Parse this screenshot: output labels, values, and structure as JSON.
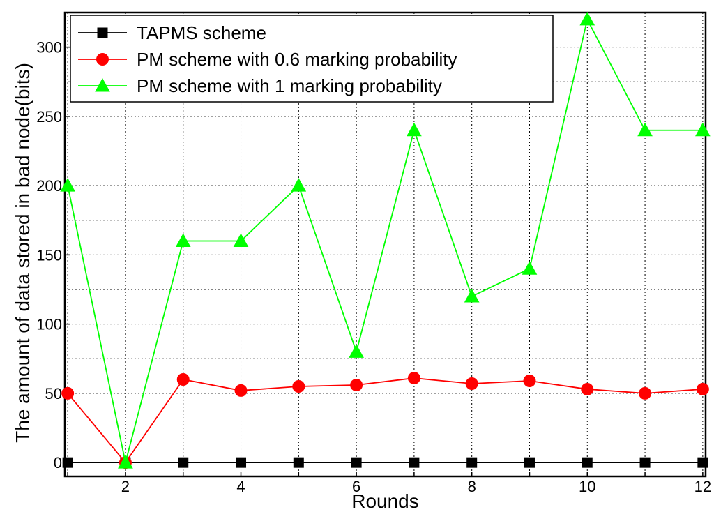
{
  "chart_data": {
    "type": "line",
    "xlabel": "Rounds",
    "ylabel": "The amount of data stored in bad node(bits)",
    "x": [
      1,
      2,
      3,
      4,
      5,
      6,
      7,
      8,
      9,
      10,
      11,
      12
    ],
    "xlim": [
      0.95,
      12.05
    ],
    "ylim": [
      -10,
      325
    ],
    "xticks": [
      2,
      4,
      6,
      8,
      10,
      12
    ],
    "yticks": [
      0,
      50,
      100,
      150,
      200,
      250,
      300
    ],
    "grid": true,
    "legend_position": "top-left",
    "series": [
      {
        "name": "TAPMS scheme",
        "color": "#000000",
        "marker": "square",
        "values": [
          0,
          0,
          0,
          0,
          0,
          0,
          0,
          0,
          0,
          0,
          0,
          0
        ]
      },
      {
        "name": "PM scheme with 0.6 marking probability",
        "color": "#ff0000",
        "marker": "circle",
        "values": [
          50,
          0,
          60,
          52,
          55,
          56,
          61,
          57,
          59,
          53,
          50,
          53
        ]
      },
      {
        "name": "PM scheme with 1 marking probability",
        "color": "#00ff00",
        "marker": "triangle",
        "values": [
          200,
          0,
          160,
          160,
          200,
          80,
          240,
          120,
          140,
          320,
          240,
          240
        ]
      }
    ]
  }
}
